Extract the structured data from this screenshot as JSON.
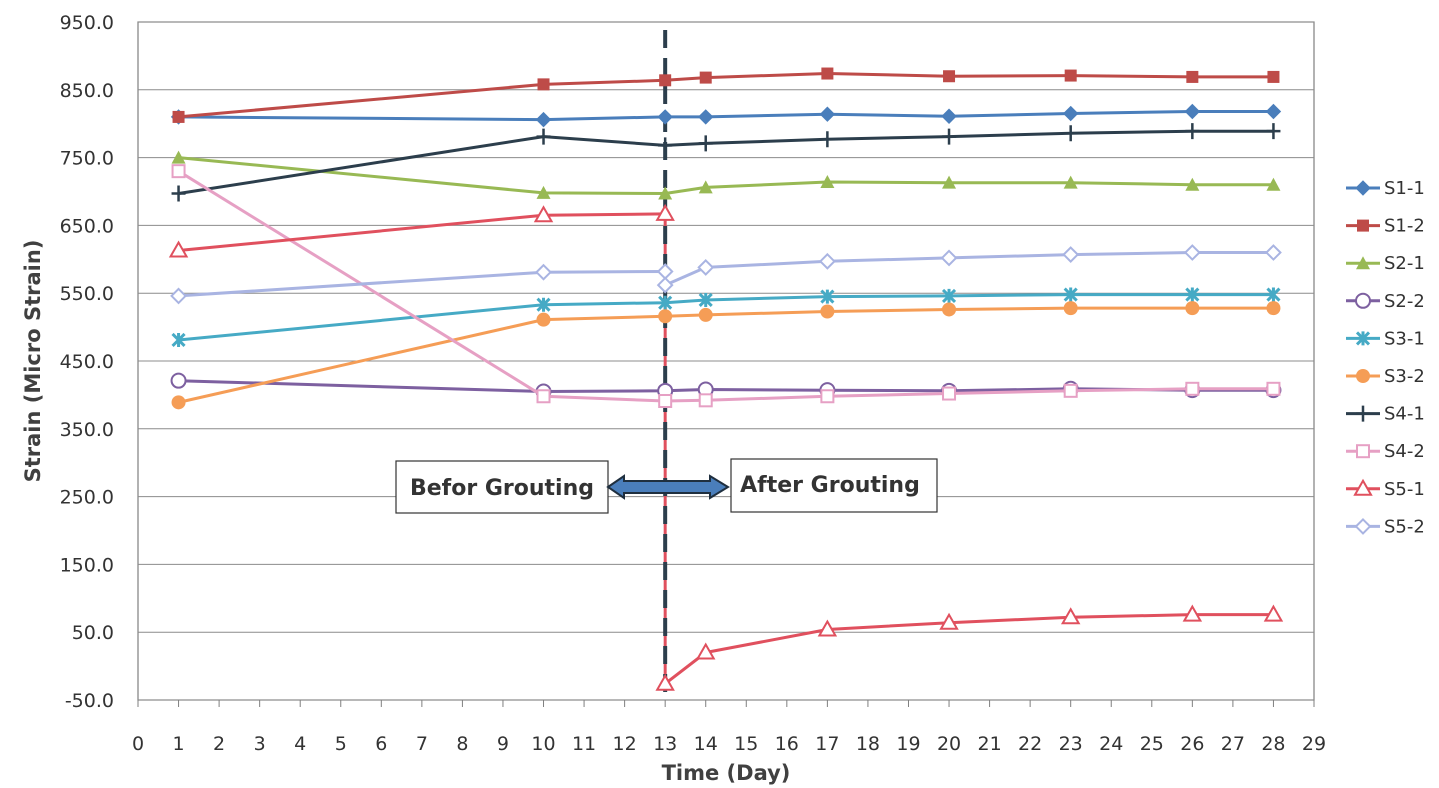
{
  "chart_data": {
    "type": "line",
    "xlabel": "Time (Day)",
    "ylabel": "Strain (Micro Strain)",
    "xlim": [
      0,
      29
    ],
    "ylim": [
      -50,
      950
    ],
    "x_ticks": [
      0,
      1,
      2,
      3,
      4,
      5,
      6,
      7,
      8,
      9,
      10,
      11,
      12,
      13,
      14,
      15,
      16,
      17,
      18,
      19,
      20,
      21,
      22,
      23,
      24,
      25,
      26,
      27,
      28,
      29
    ],
    "y_ticks": [
      -50,
      50,
      150,
      250,
      350,
      450,
      550,
      650,
      750,
      850,
      950
    ],
    "y_tick_labels": [
      "-50.0",
      "50.0",
      "150.0",
      "250.0",
      "350.0",
      "450.0",
      "550.0",
      "650.0",
      "750.0",
      "850.0",
      "950.0"
    ],
    "grid": "horizontal",
    "legend_position": "right",
    "grouting_day": 13,
    "annotations": [
      "Befor Grouting",
      "After Grouting"
    ],
    "series": [
      {
        "name": "S1-1",
        "color": "#4a7ebb",
        "marker": "diamond",
        "points": [
          [
            1,
            810
          ],
          [
            10,
            806
          ],
          [
            13,
            810
          ],
          [
            14,
            810
          ],
          [
            17,
            814
          ],
          [
            20,
            811
          ],
          [
            23,
            815
          ],
          [
            26,
            818
          ],
          [
            28,
            818
          ]
        ]
      },
      {
        "name": "S1-2",
        "color": "#be4b48",
        "marker": "square",
        "points": [
          [
            1,
            810
          ],
          [
            10,
            858
          ],
          [
            13,
            864
          ],
          [
            14,
            868
          ],
          [
            17,
            874
          ],
          [
            20,
            870
          ],
          [
            23,
            871
          ],
          [
            26,
            869
          ],
          [
            28,
            869
          ]
        ]
      },
      {
        "name": "S2-1",
        "color": "#98b954",
        "marker": "triangle",
        "points": [
          [
            1,
            750
          ],
          [
            10,
            698
          ],
          [
            13,
            697
          ],
          [
            14,
            706
          ],
          [
            17,
            714
          ],
          [
            20,
            713
          ],
          [
            23,
            713
          ],
          [
            26,
            710
          ],
          [
            28,
            710
          ]
        ]
      },
      {
        "name": "S2-2",
        "color": "#7d60a0",
        "marker": "circle-open",
        "points": [
          [
            1,
            421
          ],
          [
            10,
            405
          ],
          [
            13,
            406
          ],
          [
            14,
            408
          ],
          [
            17,
            407
          ],
          [
            20,
            406
          ],
          [
            23,
            409
          ],
          [
            26,
            407
          ],
          [
            28,
            407
          ]
        ]
      },
      {
        "name": "S3-1",
        "color": "#46aac5",
        "marker": "x-star",
        "points": [
          [
            1,
            481
          ],
          [
            10,
            533
          ],
          [
            13,
            536
          ],
          [
            14,
            540
          ],
          [
            17,
            545
          ],
          [
            20,
            546
          ],
          [
            23,
            548
          ],
          [
            26,
            548
          ],
          [
            28,
            548
          ]
        ]
      },
      {
        "name": "S3-2",
        "color": "#f59d56",
        "marker": "circle",
        "points": [
          [
            1,
            389
          ],
          [
            10,
            511
          ],
          [
            13,
            516
          ],
          [
            14,
            518
          ],
          [
            17,
            523
          ],
          [
            20,
            526
          ],
          [
            23,
            528
          ],
          [
            26,
            528
          ],
          [
            28,
            528
          ]
        ]
      },
      {
        "name": "S4-1",
        "color": "#2c3e4c",
        "marker": "plus",
        "points": [
          [
            1,
            697
          ],
          [
            10,
            781
          ],
          [
            13,
            768
          ],
          [
            14,
            771
          ],
          [
            17,
            777
          ],
          [
            20,
            781
          ],
          [
            23,
            786
          ],
          [
            26,
            789
          ],
          [
            28,
            789
          ]
        ]
      },
      {
        "name": "S4-2",
        "color": "#e6a0c4",
        "marker": "square-open",
        "points": [
          [
            1,
            730
          ],
          [
            10,
            398
          ],
          [
            13,
            391
          ],
          [
            14,
            392
          ],
          [
            17,
            398
          ],
          [
            20,
            402
          ],
          [
            23,
            406
          ],
          [
            26,
            409
          ],
          [
            28,
            409
          ]
        ]
      },
      {
        "name": "S5-1",
        "color": "#e0505e",
        "marker": "triangle-open",
        "segments": [
          [
            [
              1,
              613
            ],
            [
              10,
              665
            ],
            [
              13,
              667
            ]
          ],
          [
            [
              13,
              -26
            ],
            [
              14,
              20
            ],
            [
              17,
              54
            ],
            [
              20,
              64
            ],
            [
              23,
              72
            ],
            [
              26,
              76
            ],
            [
              28,
              76
            ]
          ]
        ]
      },
      {
        "name": "S5-2",
        "color": "#a9b4e2",
        "marker": "diamond-open",
        "segments": [
          [
            [
              1,
              546
            ],
            [
              10,
              581
            ],
            [
              13,
              582
            ]
          ],
          [
            [
              13,
              562
            ],
            [
              14,
              588
            ],
            [
              17,
              597
            ],
            [
              20,
              602
            ],
            [
              23,
              607
            ],
            [
              26,
              610
            ],
            [
              28,
              610
            ]
          ]
        ]
      }
    ]
  }
}
